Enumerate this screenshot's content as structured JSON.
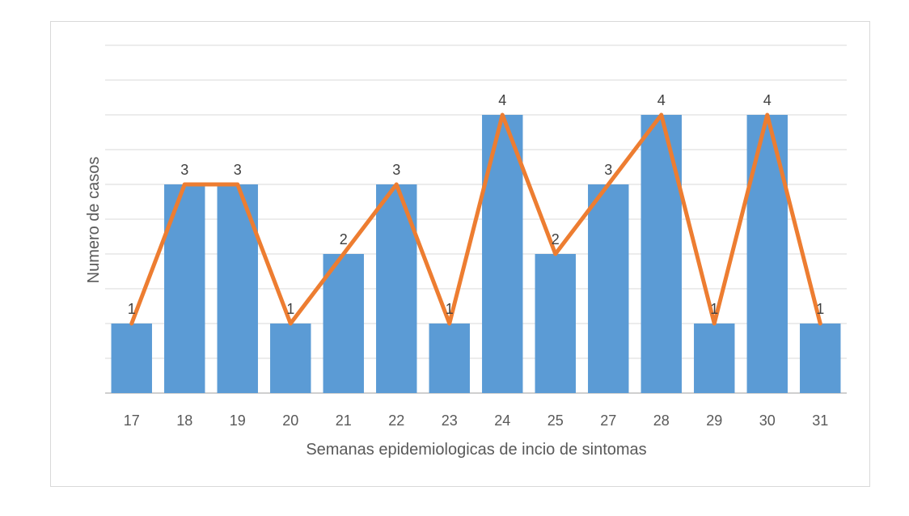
{
  "chart_data": {
    "type": "bar",
    "title": "",
    "xlabel": "Semanas epidemiologicas de incio de sintomas",
    "ylabel": "Numero de casos",
    "categories": [
      "17",
      "18",
      "19",
      "20",
      "21",
      "22",
      "23",
      "24",
      "25",
      "27",
      "28",
      "29",
      "30",
      "31"
    ],
    "values": [
      1,
      3,
      3,
      1,
      2,
      3,
      1,
      4,
      2,
      3,
      4,
      1,
      4,
      1
    ],
    "ylim": [
      0,
      5
    ],
    "grid": true,
    "y_tick_labels_shown": false,
    "overlay_line": true,
    "legend": "none",
    "colors": {
      "bar": "#5b9bd5",
      "line": "#ed7d31",
      "grid": "#d9d9d9"
    }
  }
}
